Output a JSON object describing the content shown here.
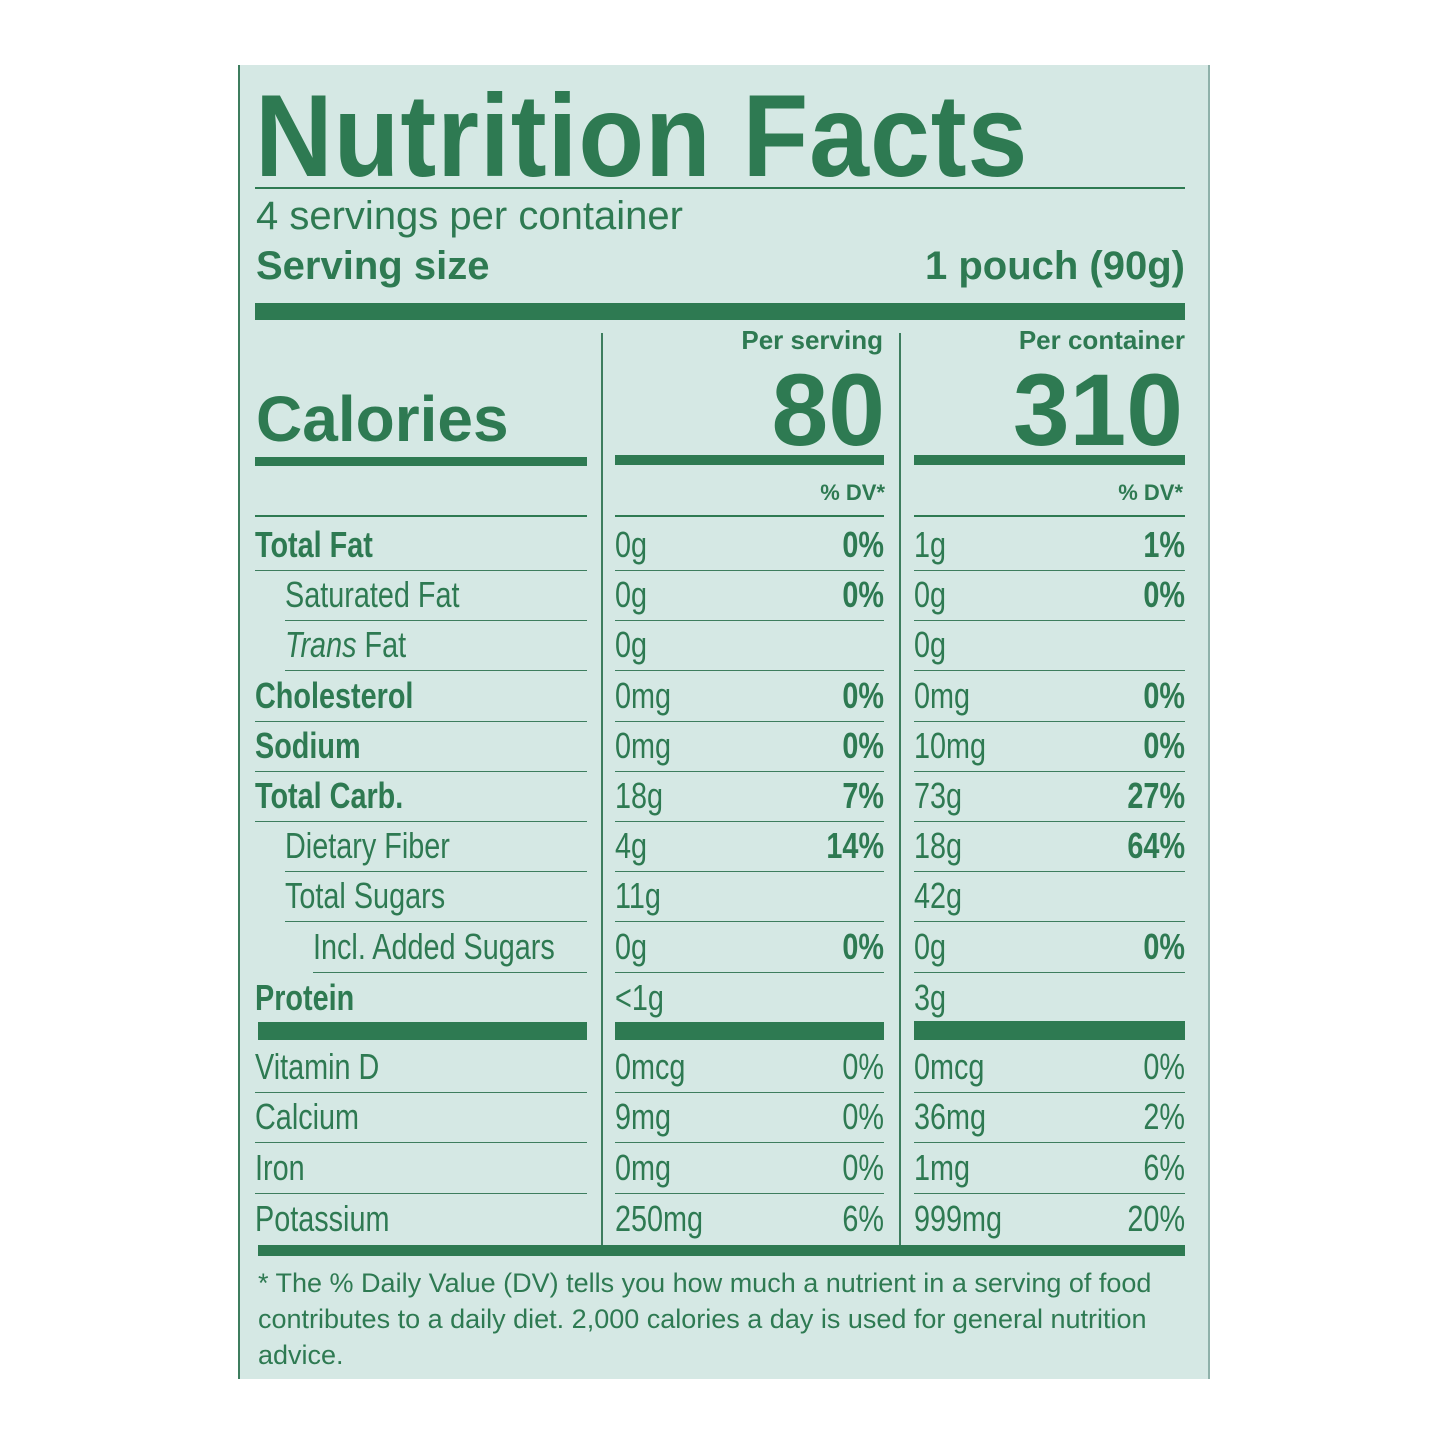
{
  "title": "Nutrition Facts",
  "servings_per_container": "4 servings per container",
  "serving_size_label": "Serving size",
  "serving_size_value": "1 pouch (90g)",
  "calories_label": "Calories",
  "columns": [
    {
      "header": "Per serving",
      "calories": "80",
      "dv_label": "% DV*"
    },
    {
      "header": "Per container",
      "calories": "310",
      "dv_label": "% DV*"
    }
  ],
  "nutrients": [
    {
      "name": "Total Fat",
      "bold": true,
      "indent": 0,
      "serving": {
        "amount": "0g",
        "dv": "0%"
      },
      "container": {
        "amount": "1g",
        "dv": "1%"
      }
    },
    {
      "name": "Saturated Fat",
      "bold": false,
      "indent": 1,
      "serving": {
        "amount": "0g",
        "dv": "0%"
      },
      "container": {
        "amount": "0g",
        "dv": "0%"
      }
    },
    {
      "name_italic": "Trans",
      "name": " Fat",
      "bold": false,
      "indent": 1,
      "serving": {
        "amount": "0g",
        "dv": ""
      },
      "container": {
        "amount": "0g",
        "dv": ""
      }
    },
    {
      "name": "Cholesterol",
      "bold": true,
      "indent": 0,
      "serving": {
        "amount": "0mg",
        "dv": "0%"
      },
      "container": {
        "amount": "0mg",
        "dv": "0%"
      }
    },
    {
      "name": "Sodium",
      "bold": true,
      "indent": 0,
      "serving": {
        "amount": "0mg",
        "dv": "0%"
      },
      "container": {
        "amount": "10mg",
        "dv": "0%"
      }
    },
    {
      "name": "Total Carb.",
      "bold": true,
      "indent": 0,
      "serving": {
        "amount": "18g",
        "dv": "7%"
      },
      "container": {
        "amount": "73g",
        "dv": "27%"
      }
    },
    {
      "name": "Dietary Fiber",
      "bold": false,
      "indent": 1,
      "serving": {
        "amount": "4g",
        "dv": "14%"
      },
      "container": {
        "amount": "18g",
        "dv": "64%"
      }
    },
    {
      "name": "Total Sugars",
      "bold": false,
      "indent": 1,
      "serving": {
        "amount": "11g",
        "dv": ""
      },
      "container": {
        "amount": "42g",
        "dv": ""
      }
    },
    {
      "name": "Incl. Added Sugars",
      "bold": false,
      "indent": 2,
      "serving": {
        "amount": "0g",
        "dv": "0%"
      },
      "container": {
        "amount": "0g",
        "dv": "0%"
      }
    },
    {
      "name": "Protein",
      "bold": true,
      "indent": 0,
      "serving": {
        "amount": "<1g",
        "dv": ""
      },
      "container": {
        "amount": "3g",
        "dv": ""
      }
    }
  ],
  "vitamins": [
    {
      "name": "Vitamin D",
      "serving": {
        "amount": "0mcg",
        "dv": "0%"
      },
      "container": {
        "amount": "0mcg",
        "dv": "0%"
      }
    },
    {
      "name": "Calcium",
      "serving": {
        "amount": "9mg",
        "dv": "0%"
      },
      "container": {
        "amount": "36mg",
        "dv": "2%"
      }
    },
    {
      "name": "Iron",
      "serving": {
        "amount": "0mg",
        "dv": "0%"
      },
      "container": {
        "amount": "1mg",
        "dv": "6%"
      }
    },
    {
      "name": "Potassium",
      "serving": {
        "amount": "250mg",
        "dv": "6%"
      },
      "container": {
        "amount": "999mg",
        "dv": "20%"
      }
    }
  ],
  "footnote": "* The % Daily Value (DV) tells you how much a nutrient in a serving of food contributes to a daily diet. 2,000 calories a day is used for general nutrition advice.",
  "colors": {
    "ink": "#2e7a52",
    "background": "#d5e8e4"
  }
}
